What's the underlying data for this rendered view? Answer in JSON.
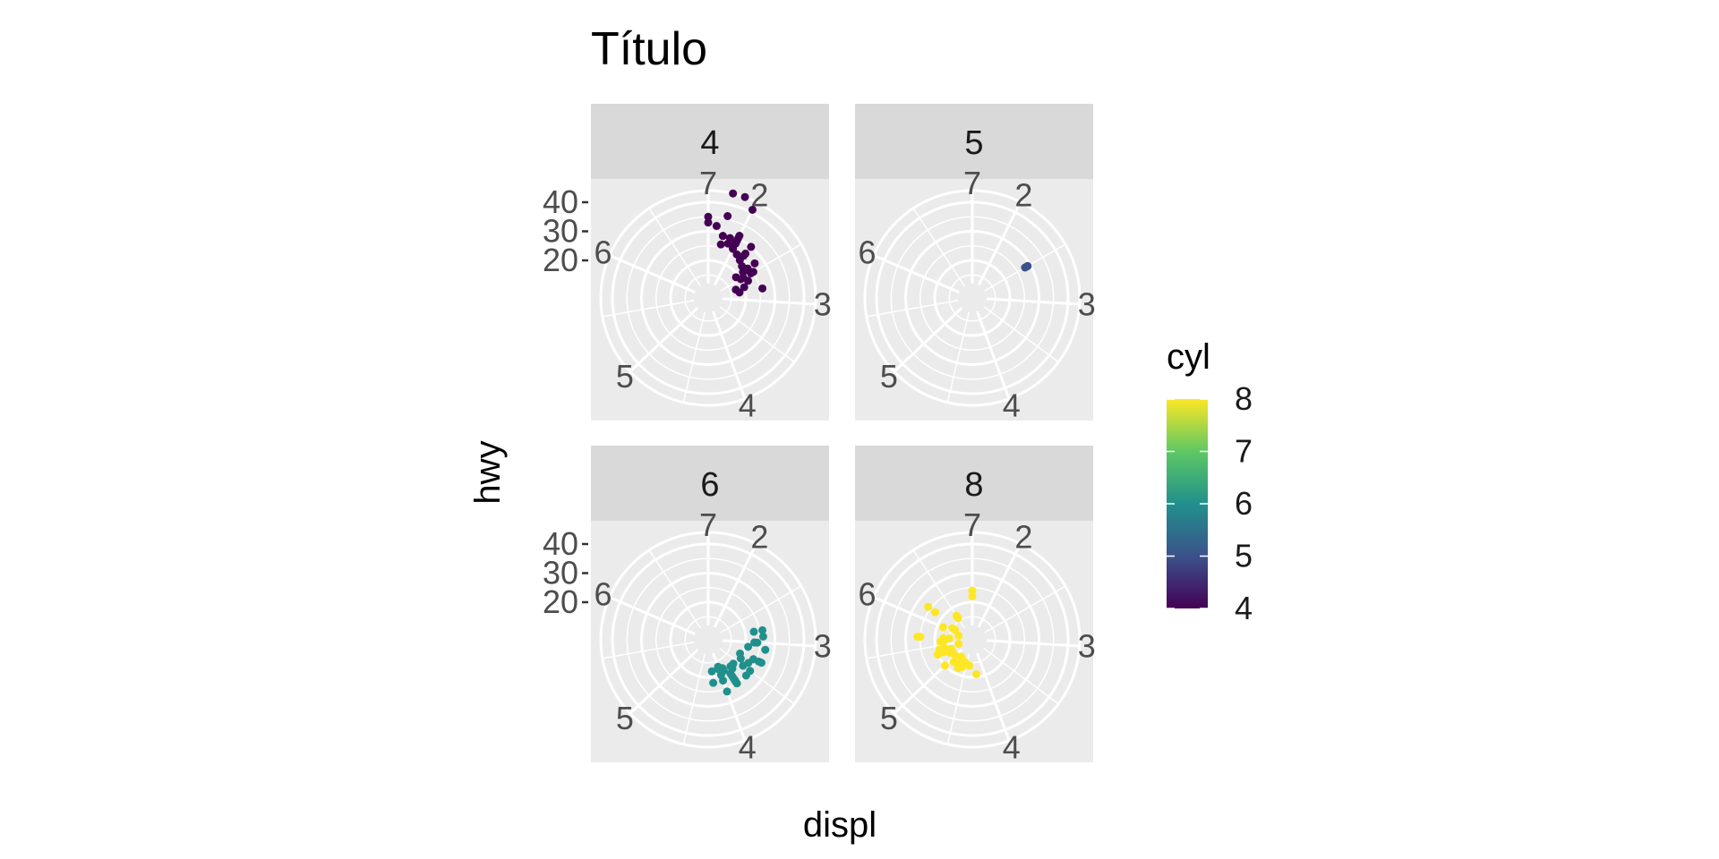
{
  "chart_data": {
    "type": "scatter",
    "coord": "polar",
    "title": "Título",
    "xlabel": "displ",
    "ylabel": "hwy",
    "facet_by": "cyl",
    "facets": [
      {
        "label": "4",
        "points": [
          [
            1.8,
            29
          ],
          [
            1.8,
            29
          ],
          [
            2.0,
            31
          ],
          [
            2.0,
            30
          ],
          [
            2.8,
            26
          ],
          [
            2.0,
            28
          ],
          [
            2.4,
            27
          ],
          [
            2.5,
            25
          ],
          [
            2.2,
            26
          ],
          [
            2.2,
            27
          ],
          [
            2.4,
            24
          ],
          [
            2.4,
            23
          ],
          [
            2.0,
            26
          ],
          [
            2.0,
            26
          ],
          [
            1.8,
            26
          ],
          [
            1.9,
            27
          ],
          [
            1.6,
            33
          ],
          [
            1.7,
            32
          ],
          [
            1.9,
            29
          ],
          [
            2.0,
            28
          ],
          [
            2.1,
            25
          ],
          [
            2.2,
            24
          ],
          [
            2.3,
            23
          ],
          [
            2.5,
            24
          ],
          [
            2.7,
            20
          ],
          [
            2.7,
            17
          ],
          [
            2.4,
            22
          ],
          [
            2.5,
            21
          ],
          [
            2.0,
            29
          ],
          [
            2.4,
            23
          ],
          [
            1.6,
            35
          ],
          [
            1.8,
            36
          ],
          [
            1.8,
            44
          ],
          [
            1.9,
            44
          ],
          [
            2.0,
            41
          ],
          [
            2.4,
            19
          ],
          [
            2.8,
            18
          ],
          [
            2.6,
            22
          ],
          [
            2.2,
            30
          ],
          [
            2.5,
            20
          ]
        ]
      },
      {
        "label": "5",
        "points": [
          [
            2.5,
            29
          ],
          [
            2.5,
            29
          ],
          [
            2.5,
            28
          ],
          [
            2.5,
            29
          ]
        ]
      },
      {
        "label": "6",
        "points": [
          [
            2.8,
            26
          ],
          [
            3.1,
            27
          ],
          [
            3.6,
            25
          ],
          [
            3.3,
            24
          ],
          [
            3.8,
            22
          ],
          [
            3.8,
            24
          ],
          [
            4.0,
            26
          ],
          [
            3.0,
            24
          ],
          [
            3.5,
            25
          ],
          [
            3.8,
            23
          ],
          [
            4.0,
            22
          ],
          [
            4.2,
            22
          ],
          [
            3.0,
            23
          ],
          [
            3.3,
            24
          ],
          [
            3.7,
            20
          ],
          [
            3.9,
            19
          ],
          [
            4.0,
            18
          ],
          [
            4.0,
            17
          ],
          [
            3.8,
            21
          ],
          [
            3.5,
            22
          ],
          [
            3.4,
            20
          ],
          [
            3.1,
            21
          ],
          [
            2.8,
            23
          ],
          [
            3.3,
            26
          ],
          [
            3.8,
            25
          ],
          [
            4.0,
            17
          ],
          [
            3.3,
            19
          ],
          [
            3.6,
            19
          ],
          [
            3.5,
            22
          ],
          [
            2.9,
            26
          ],
          [
            3.8,
            24
          ],
          [
            3.3,
            27
          ],
          [
            3.8,
            25
          ],
          [
            4.2,
            18
          ],
          [
            3.0,
            23
          ],
          [
            3.5,
            25
          ],
          [
            3.9,
            18
          ],
          [
            4.0,
            20
          ],
          [
            3.7,
            19
          ],
          [
            3.4,
            23
          ]
        ]
      },
      {
        "label": "8",
        "points": [
          [
            5.7,
            26
          ],
          [
            5.7,
            25
          ],
          [
            6.2,
            26
          ],
          [
            6.2,
            23
          ],
          [
            7.0,
            24
          ],
          [
            5.3,
            20
          ],
          [
            5.3,
            15
          ],
          [
            5.7,
            15
          ],
          [
            6.5,
            17
          ],
          [
            4.6,
            17
          ],
          [
            5.4,
            17
          ],
          [
            5.4,
            19
          ],
          [
            4.7,
            18
          ],
          [
            5.2,
            16
          ],
          [
            5.7,
            17
          ],
          [
            5.9,
            12
          ],
          [
            4.7,
            16
          ],
          [
            4.7,
            18
          ],
          [
            5.3,
            17
          ],
          [
            5.6,
            18
          ],
          [
            4.4,
            16
          ],
          [
            6.1,
            15
          ],
          [
            4.6,
            17
          ],
          [
            5.4,
            17
          ],
          [
            4.2,
            19
          ],
          [
            5.0,
            20
          ],
          [
            6.0,
            18
          ],
          [
            4.7,
            16
          ],
          [
            5.2,
            15
          ],
          [
            6.1,
            14
          ],
          [
            5.4,
            12
          ],
          [
            4.6,
            15
          ],
          [
            4.8,
            14
          ],
          [
            4.9,
            17
          ],
          [
            5.3,
            18
          ],
          [
            5.6,
            17
          ],
          [
            6.5,
            16
          ],
          [
            5.0,
            15
          ],
          [
            4.6,
            16
          ],
          [
            7.0,
            22
          ]
        ]
      }
    ],
    "x_ticks": [
      "2",
      "3",
      "4",
      "5",
      "6",
      "7"
    ],
    "y_ticks": [
      "20",
      "30",
      "40"
    ],
    "xlim": [
      1.6,
      7.0
    ],
    "ylim": [
      12,
      44
    ],
    "legend": {
      "title": "cyl",
      "type": "colorbar",
      "placement": "right",
      "labels": [
        "8",
        "7",
        "6",
        "5",
        "4"
      ],
      "range": [
        4,
        8
      ]
    },
    "colors": {
      "panel_bg": "#ebebeb",
      "strip_bg": "#d9d9d9",
      "grid": "#ffffff",
      "text": "#000000",
      "tick_text": "#4d4d4d",
      "viridis": [
        "#440154",
        "#3b528b",
        "#21908c",
        "#5dc863",
        "#fde725"
      ]
    }
  }
}
